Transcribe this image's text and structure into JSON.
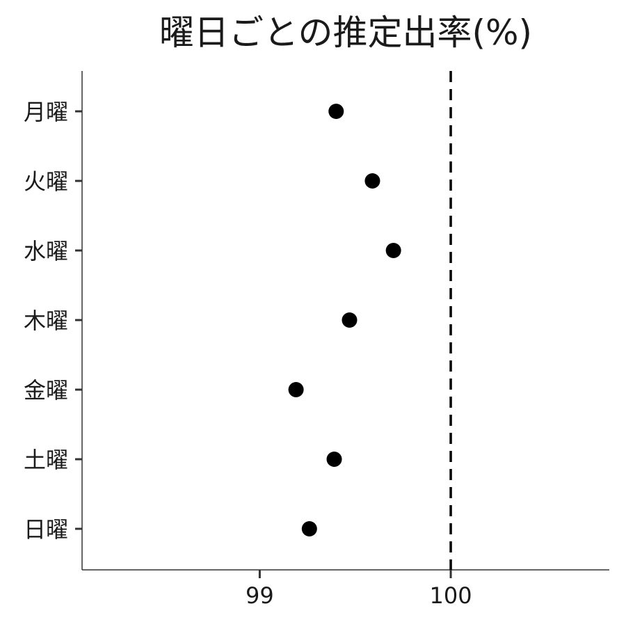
{
  "chart_data": {
    "type": "scatter",
    "title": "曜日ごとの推定出率(%)",
    "xlabel": "",
    "ylabel": "",
    "categories": [
      "月曜",
      "火曜",
      "水曜",
      "木曜",
      "金曜",
      "土曜",
      "日曜"
    ],
    "values": [
      99.4,
      99.59,
      99.7,
      99.47,
      99.19,
      99.39,
      99.26
    ],
    "xlim": [
      98.07,
      100.83
    ],
    "xticks": [
      99,
      100
    ],
    "xtick_labels": [
      "99",
      "100"
    ],
    "reference_line": {
      "x": 100,
      "style": "dashed"
    },
    "grid": false,
    "legend": "none",
    "point_color": "#000000",
    "axis_color": "#333333"
  }
}
